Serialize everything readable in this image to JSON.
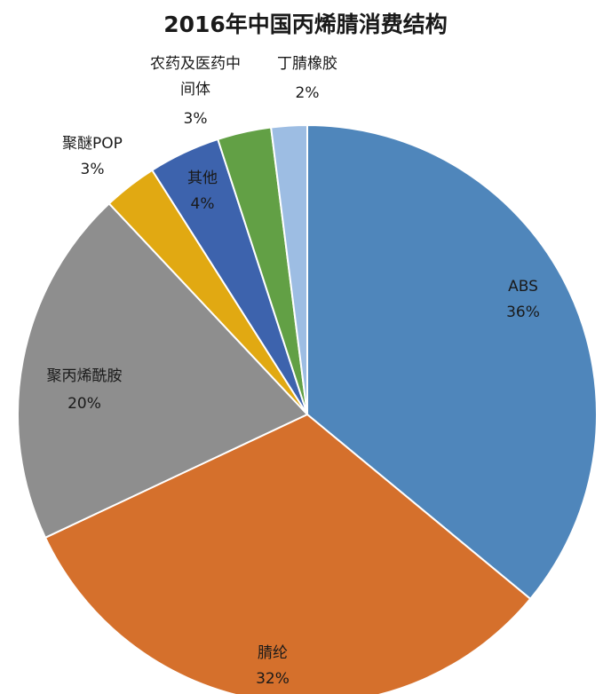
{
  "chart_data": {
    "type": "pie",
    "title": "2016年中国丙烯腈消费结构",
    "slices": [
      {
        "name": "ABS",
        "value": 36,
        "label": "36%",
        "color": "#4f86bb"
      },
      {
        "name": "腈纶",
        "value": 32,
        "label": "32%",
        "color": "#d5702c"
      },
      {
        "name": "聚丙烯酰胺",
        "value": 20,
        "label": "20%",
        "color": "#8e8e8e"
      },
      {
        "name": "聚醚POP",
        "value": 3,
        "label": "3%",
        "color": "#e1a912"
      },
      {
        "name": "其他",
        "value": 4,
        "label": "4%",
        "color": "#3d63ad"
      },
      {
        "name": "农药及医药中间体",
        "value": 3,
        "label": "3%",
        "color": "#62a045"
      },
      {
        "name": "丁腈橡胶",
        "value": 2,
        "label": "2%",
        "color": "#9dbde3"
      }
    ]
  }
}
